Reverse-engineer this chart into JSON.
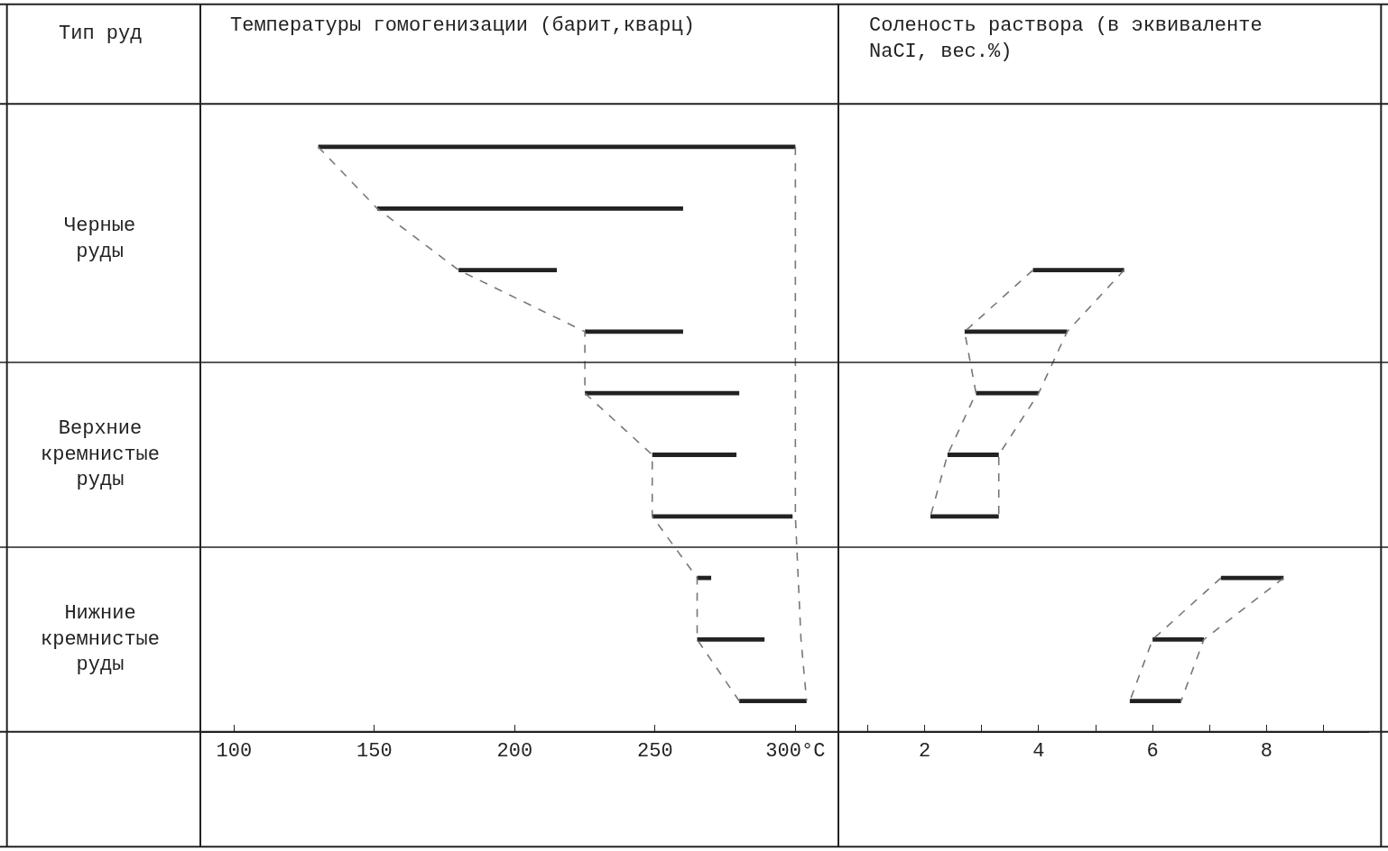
{
  "chart_data": [
    {
      "type": "bar",
      "orientation": "horizontal",
      "title": "Температуры гомогенизации (барит,кварц)",
      "annotations": [
        "Тип руд",
        "Черные руды",
        "Верхние кремнистые руды",
        "Нижние кремнистые руды"
      ],
      "categories": [
        null,
        null,
        null,
        null,
        null,
        null,
        null,
        null,
        null,
        null
      ],
      "base": [
        130,
        151,
        180,
        225,
        225,
        249,
        249,
        265,
        265,
        280
      ],
      "values": [
        170,
        109,
        35,
        35,
        55,
        30,
        50,
        5,
        24,
        24
      ],
      "color": "#222222",
      "series": [
        {
          "type": "line",
          "line_style": "dashed",
          "color": "#777777",
          "values": [
            130,
            151,
            180,
            225,
            225,
            249,
            249,
            265,
            265,
            280
          ]
        },
        {
          "type": "line",
          "line_style": "dashed",
          "color": "#777777",
          "values": [
            300,
            300,
            300,
            300,
            300,
            300,
            300,
            301,
            302,
            304
          ]
        }
      ],
      "xlim": [
        88,
        315
      ],
      "xticks": [
        100,
        150,
        200,
        250,
        {
          "value": 300,
          "label": "300°C"
        }
      ],
      "tick_labels": "x"
    },
    {
      "type": "bar",
      "orientation": "horizontal",
      "title": "Соленость раствора (в эквиваленте NaCI, вес.%)",
      "categories": [
        null,
        null,
        null,
        null,
        null,
        null,
        null,
        null,
        null,
        null
      ],
      "base": [
        null,
        null,
        3.9,
        2.7,
        2.9,
        2.4,
        2.1,
        7.2,
        6.0,
        5.6
      ],
      "values": [
        null,
        null,
        1.6,
        1.8,
        1.1,
        0.9,
        1.2,
        1.1,
        0.9,
        0.9
      ],
      "color": "#222222",
      "series": [
        {
          "type": "line",
          "line_style": "dashed",
          "color": "#777777",
          "values": [
            null,
            null,
            3.9,
            2.7,
            2.9,
            2.4,
            2.1,
            null,
            null,
            null
          ]
        },
        {
          "type": "line",
          "line_style": "dashed",
          "color": "#777777",
          "values": [
            null,
            null,
            5.5,
            4.5,
            4.0,
            3.3,
            3.3,
            null,
            null,
            null
          ]
        },
        {
          "type": "line",
          "line_style": "dashed",
          "color": "#777777",
          "values": [
            null,
            null,
            null,
            null,
            null,
            null,
            null,
            7.2,
            6.0,
            5.6
          ]
        },
        {
          "type": "line",
          "line_style": "dashed",
          "color": "#777777",
          "values": [
            null,
            null,
            null,
            null,
            null,
            null,
            null,
            8.3,
            6.9,
            6.5
          ]
        }
      ],
      "xlim": [
        0.5,
        9.8
      ],
      "xticks": [
        {
          "value": 1,
          "label": null
        },
        2,
        {
          "value": 3,
          "label": null
        },
        4,
        {
          "value": 5,
          "label": null
        },
        6,
        {
          "value": 7,
          "label": null
        },
        8,
        {
          "value": 9,
          "label": null
        }
      ],
      "tick_labels": "x"
    }
  ]
}
